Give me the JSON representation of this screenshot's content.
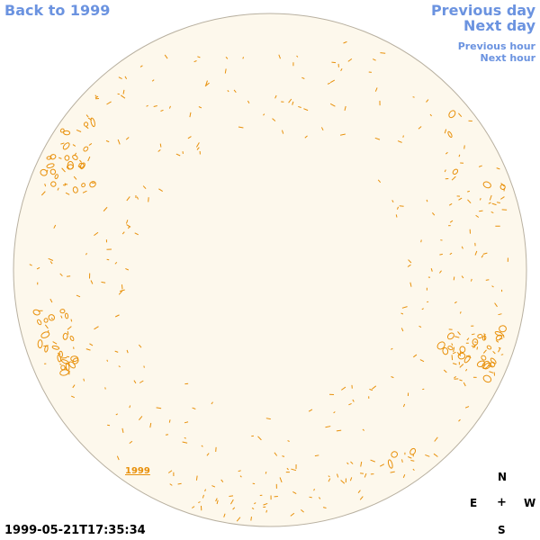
{
  "nav": {
    "back": "Back to 1999",
    "prev_day": "Previous day",
    "next_day": "Next day",
    "prev_hour": "Previous hour",
    "next_hour": "Next hour"
  },
  "timestamp": "1999-05-21T17:35:34",
  "year_label": "1999",
  "compass": {
    "n": "N",
    "e": "E",
    "center": "+",
    "w": "W",
    "s": "S"
  },
  "colors": {
    "nav": "#6b93e0",
    "disk_fill": "#fdf8ec",
    "disk_edge": "#b8b0a0",
    "contour": "#e8900a"
  },
  "icons": [
    "solar-disk-icon"
  ]
}
